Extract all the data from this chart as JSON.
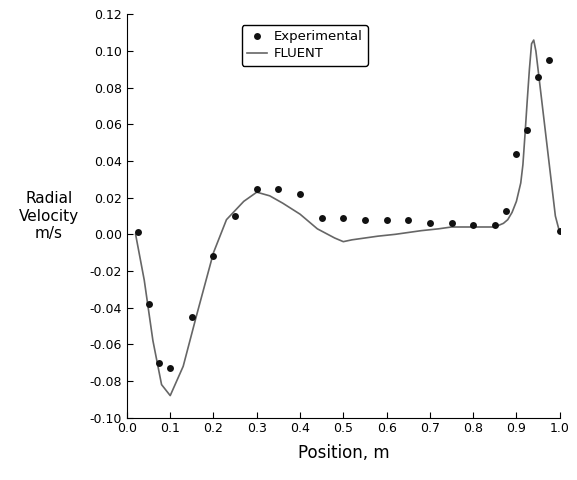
{
  "exp_x": [
    0.025,
    0.05,
    0.075,
    0.1,
    0.15,
    0.2,
    0.25,
    0.3,
    0.35,
    0.4,
    0.45,
    0.5,
    0.55,
    0.6,
    0.65,
    0.7,
    0.75,
    0.8,
    0.85,
    0.875,
    0.9,
    0.925,
    0.95,
    0.975,
    1.0
  ],
  "exp_y": [
    0.001,
    -0.038,
    -0.07,
    -0.073,
    -0.045,
    -0.012,
    0.01,
    0.025,
    0.025,
    0.022,
    0.009,
    0.009,
    0.008,
    0.008,
    0.008,
    0.006,
    0.006,
    0.005,
    0.005,
    0.013,
    0.044,
    0.057,
    0.086,
    0.095,
    0.002
  ],
  "fluent_x": [
    0.02,
    0.04,
    0.06,
    0.08,
    0.1,
    0.13,
    0.16,
    0.2,
    0.23,
    0.27,
    0.3,
    0.33,
    0.36,
    0.4,
    0.44,
    0.48,
    0.5,
    0.52,
    0.55,
    0.58,
    0.62,
    0.65,
    0.68,
    0.72,
    0.75,
    0.78,
    0.82,
    0.85,
    0.87,
    0.88,
    0.89,
    0.9,
    0.91,
    0.915,
    0.92,
    0.925,
    0.93,
    0.935,
    0.94,
    0.945,
    0.96,
    0.975,
    0.99,
    1.0
  ],
  "fluent_y": [
    0.0,
    -0.025,
    -0.058,
    -0.082,
    -0.088,
    -0.072,
    -0.045,
    -0.01,
    0.008,
    0.018,
    0.023,
    0.021,
    0.017,
    0.011,
    0.003,
    -0.002,
    -0.004,
    -0.003,
    -0.002,
    -0.001,
    0.0,
    0.001,
    0.002,
    0.003,
    0.004,
    0.004,
    0.004,
    0.004,
    0.006,
    0.008,
    0.012,
    0.018,
    0.028,
    0.038,
    0.055,
    0.073,
    0.09,
    0.104,
    0.106,
    0.1,
    0.07,
    0.04,
    0.01,
    0.001
  ],
  "xlabel": "Position, m",
  "ylabel": "Radial\nVelocity\nm/s",
  "xlim": [
    0.0,
    1.0
  ],
  "ylim": [
    -0.1,
    0.12
  ],
  "xticks": [
    0.0,
    0.1,
    0.2,
    0.3,
    0.4,
    0.5,
    0.6,
    0.7,
    0.8,
    0.9,
    1.0
  ],
  "yticks": [
    -0.1,
    -0.08,
    -0.06,
    -0.04,
    -0.02,
    0.0,
    0.02,
    0.04,
    0.06,
    0.08,
    0.1,
    0.12
  ],
  "legend_labels": [
    "Experimental",
    "FLUENT"
  ],
  "line_color": "#666666",
  "dot_color": "#111111",
  "background_color": "#ffffff",
  "figwidth": 5.77,
  "figheight": 4.8,
  "dpi": 100
}
